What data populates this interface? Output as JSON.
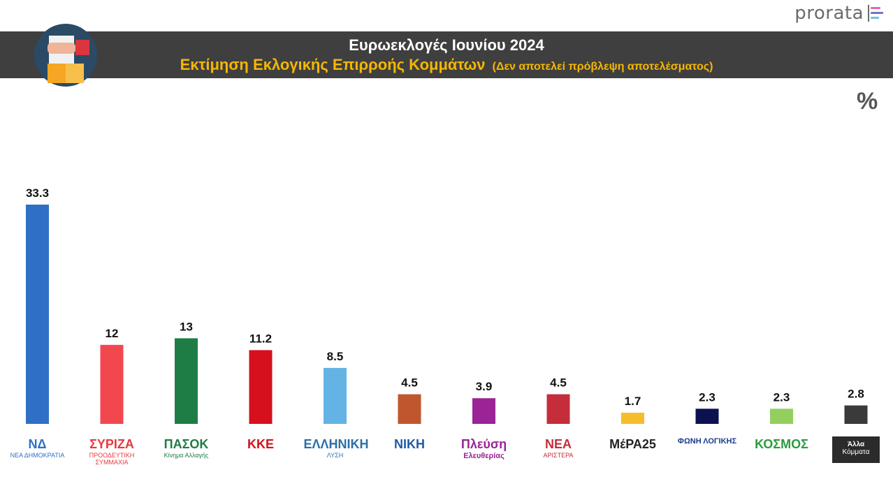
{
  "brand": {
    "name": "prorata",
    "bars": [
      "#e36aa6",
      "#7a6fc9",
      "#6cc2e8"
    ]
  },
  "header": {
    "title": "Ευρωεκλογές Ιουνίου 2024",
    "subtitle": "Εκτίμηση Εκλογικής Επιρροής Κομμάτων",
    "note": "(Δεν αποτελεί πρόβλεψη αποτελέσματος)"
  },
  "unit_icon": "%",
  "chart_data": {
    "type": "bar",
    "categories": [
      "ΝΔ",
      "ΣΥΡΙΖΑ",
      "ΠΑΣΟΚ",
      "ΚΚΕ",
      "Ελληνική Λύση",
      "ΝΙΚΗ",
      "Πλεύση Ελευθερίας",
      "Νέα Αριστερά",
      "ΜέΡΑ25",
      "Φωνή Λογικής",
      "ΚΟΣΜΟΣ",
      "Άλλα Κόμματα"
    ],
    "values": [
      33.3,
      12,
      13,
      11.2,
      8.5,
      4.5,
      3.9,
      4.5,
      1.7,
      2.3,
      2.3,
      2.8
    ],
    "value_labels": [
      "33.3",
      "12",
      "13",
      "11.2",
      "8.5",
      "4.5",
      "3.9",
      "4.5",
      "1.7",
      "2.3",
      "2.3",
      "2.8"
    ],
    "colors": [
      "#2f6fc6",
      "#f3474f",
      "#1e7d45",
      "#d6101d",
      "#63b3e4",
      "#c0562d",
      "#9a2495",
      "#c62d3a",
      "#f6bd2b",
      "#0c1250",
      "#92cf5e",
      "#3a3a3a"
    ],
    "ylim": [
      0,
      33.3
    ],
    "grid": false,
    "legend": "none"
  },
  "logos": [
    {
      "main": "ΝΔ",
      "sub": "ΝΕΑ ΔΗΜΟΚΡΑΤΙΑ",
      "color": "#2f6fc6"
    },
    {
      "main": "ΣΥΡΙΖΑ",
      "sub": "ΠΡΟΟΔΕΥΤΙΚΗ ΣΥΜΜΑΧΙΑ",
      "color": "#e8373f"
    },
    {
      "main": "ΠΑΣΟΚ",
      "sub": "Κίνημα Αλλαγής",
      "color": "#1e7d45"
    },
    {
      "main": "ΚΚΕ",
      "sub": "",
      "color": "#d6101d"
    },
    {
      "main": "ΕΛΛΗΝΙΚΗ",
      "sub": "ΛΥΣΗ",
      "color": "#2a6fa8"
    },
    {
      "main": "ΝΙΚΗ",
      "sub": "",
      "color": "#1e5aa8"
    },
    {
      "main": "Πλεύση",
      "sub": "Ελευθερίας",
      "color": "#9a2495"
    },
    {
      "main": "ΝΕΑ",
      "sub": "ΑΡΙΣΤΕΡΑ",
      "color": "#c62d3a"
    },
    {
      "main": "ΜέΡΑ25",
      "sub": "",
      "color": "#222222"
    },
    {
      "main": "ΦΩΝΗ ΛΟΓΙΚΗΣ",
      "sub": "",
      "color": "#1b3a8a"
    },
    {
      "main": "ΚΟΣΜΟΣ",
      "sub": "",
      "color": "#2d9a3e"
    },
    {
      "main": "Άλλα",
      "sub": "Κόμματα",
      "color": "#3a3a3a"
    }
  ]
}
